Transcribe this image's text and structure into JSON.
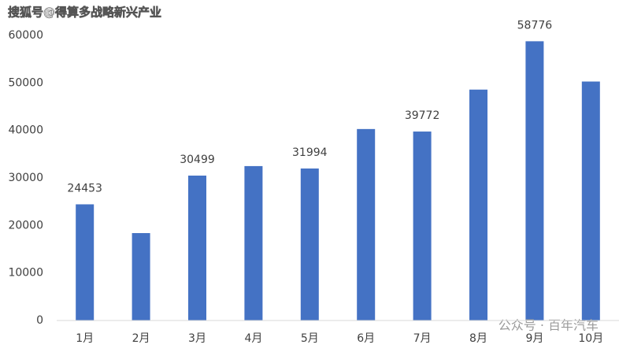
{
  "chart_data": {
    "type": "bar",
    "categories": [
      "1月",
      "2月",
      "3月",
      "4月",
      "5月",
      "6月",
      "7月",
      "8月",
      "9月",
      "10月"
    ],
    "values": [
      24453,
      18400,
      30499,
      32500,
      31994,
      40300,
      39772,
      48600,
      58776,
      50300
    ],
    "value_labels": [
      "24453",
      null,
      "30499",
      null,
      "31994",
      null,
      "39772",
      null,
      "58776",
      null
    ],
    "color": "#4472c4",
    "ylim": [
      0,
      60000
    ],
    "yticks": [
      0,
      10000,
      20000,
      30000,
      40000,
      50000,
      60000
    ],
    "grid": false
  },
  "watermarks": [
    "搜狐号@得算多战略新兴产业",
    "公众号 · 百年汽车"
  ]
}
